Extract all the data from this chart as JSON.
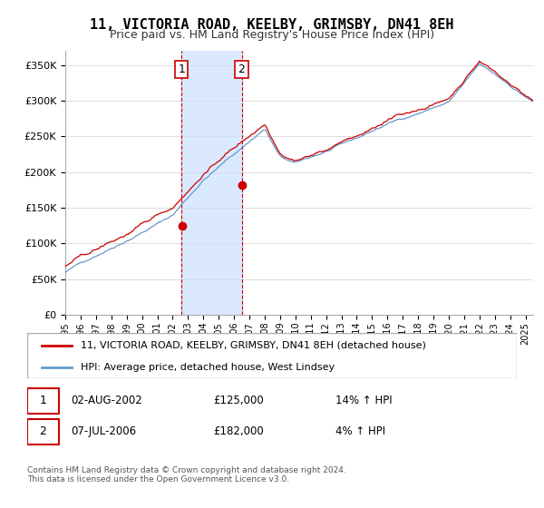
{
  "title": "11, VICTORIA ROAD, KEELBY, GRIMSBY, DN41 8EH",
  "subtitle": "Price paid vs. HM Land Registry's House Price Index (HPI)",
  "legend_line1": "11, VICTORIA ROAD, KEELBY, GRIMSBY, DN41 8EH (detached house)",
  "legend_line2": "HPI: Average price, detached house, West Lindsey",
  "transaction1_date": "02-AUG-2002",
  "transaction1_price": "£125,000",
  "transaction1_hpi": "14% ↑ HPI",
  "transaction2_date": "07-JUL-2006",
  "transaction2_price": "£182,000",
  "transaction2_hpi": "4% ↑ HPI",
  "footer": "Contains HM Land Registry data © Crown copyright and database right 2024.\nThis data is licensed under the Open Government Licence v3.0.",
  "red_color": "#cc0000",
  "blue_color": "#6699cc",
  "shade_color": "#cce0ff",
  "box_color": "#cc0000",
  "ylim_min": 0,
  "ylim_max": 370000,
  "year_start": 1995,
  "year_end": 2025,
  "t1_year": 2002.58,
  "t2_year": 2006.5,
  "t1_price": 125000,
  "t2_price": 182000
}
